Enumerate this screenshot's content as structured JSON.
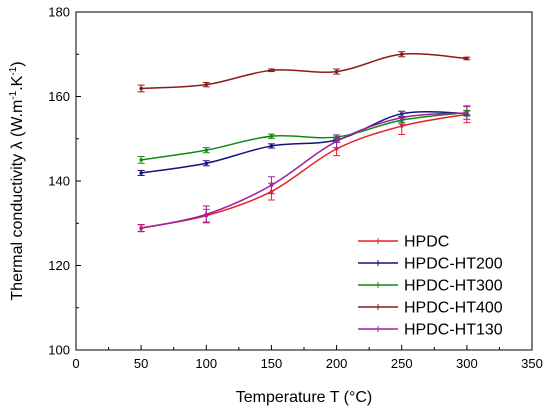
{
  "chart_data": {
    "type": "line",
    "xlabel": "Temperature T (°C)",
    "ylabel": {
      "main": "Thermal conductivity λ (W.m",
      "sup1": "-1",
      "mid": ".K",
      "sup2": "-1",
      "end": ")"
    },
    "xlim": [
      0,
      350
    ],
    "ylim": [
      100,
      180
    ],
    "xticks": [
      0,
      50,
      100,
      150,
      200,
      250,
      300,
      350
    ],
    "yticks": [
      100,
      120,
      140,
      160,
      180
    ],
    "grid": false,
    "legend_position": "bottom-right",
    "x": [
      50,
      100,
      150,
      200,
      250,
      300
    ],
    "series": [
      {
        "name": "HPDC",
        "color": "#e8202a",
        "values": [
          128.9,
          131.8,
          137.5,
          147.6,
          153.0,
          155.8
        ],
        "errors": [
          0.8,
          1.5,
          2.0,
          1.6,
          2.0,
          2.0
        ]
      },
      {
        "name": "HPDC-HT200",
        "color": "#14147a",
        "values": [
          141.9,
          144.2,
          148.3,
          149.7,
          155.9,
          156.0
        ],
        "errors": [
          0.6,
          0.6,
          0.5,
          0.5,
          0.6,
          0.6
        ]
      },
      {
        "name": "HPDC-HT300",
        "color": "#128a12",
        "values": [
          145.0,
          147.3,
          150.6,
          150.4,
          154.4,
          156.2
        ],
        "errors": [
          0.8,
          0.6,
          0.5,
          0.5,
          0.5,
          0.5
        ]
      },
      {
        "name": "HPDC-HT400",
        "color": "#8b1a1a",
        "values": [
          161.9,
          162.8,
          166.2,
          165.9,
          170.0,
          169.0
        ],
        "errors": [
          0.8,
          0.5,
          0.3,
          0.6,
          0.6,
          0.3
        ]
      },
      {
        "name": "HPDC-HT130",
        "color": "#a020a0",
        "values": [
          128.8,
          132.1,
          139.0,
          149.4,
          155.0,
          156.1
        ],
        "errors": [
          0.8,
          2.0,
          2.0,
          1.5,
          1.5,
          1.5
        ]
      }
    ]
  }
}
